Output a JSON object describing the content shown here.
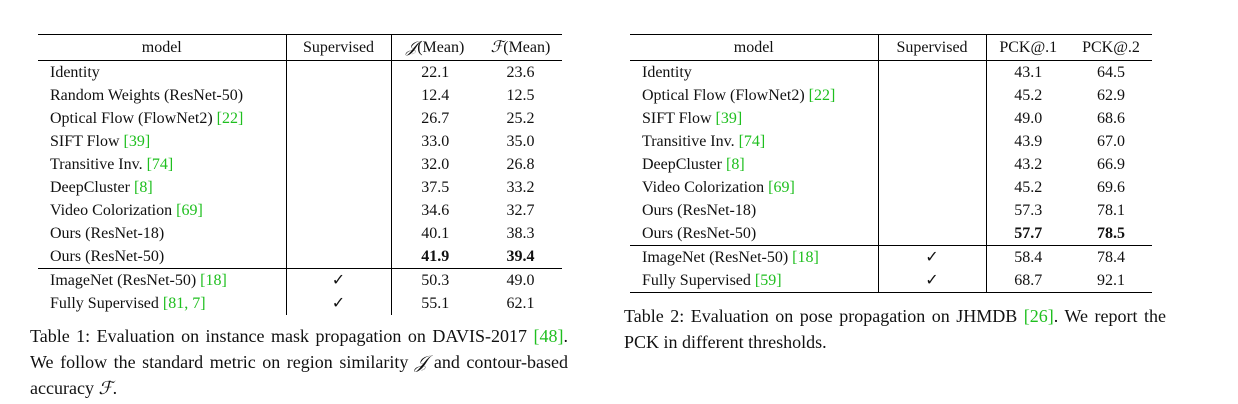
{
  "table1": {
    "headers": [
      "model",
      "Supervised",
      "J(Mean)",
      "F(Mean)"
    ],
    "header_symbols": [
      "𝒥",
      "ℱ"
    ],
    "header_suffix": "(Mean)",
    "rows": [
      {
        "model": "Identity",
        "ref": "",
        "supervised": "",
        "j": "22.1",
        "f": "23.6"
      },
      {
        "model": "Random Weights (ResNet-50)",
        "ref": "",
        "supervised": "",
        "j": "12.4",
        "f": "12.5"
      },
      {
        "model": "Optical Flow (FlowNet2) ",
        "ref": "[22]",
        "supervised": "",
        "j": "26.7",
        "f": "25.2"
      },
      {
        "model": "SIFT Flow ",
        "ref": "[39]",
        "supervised": "",
        "j": "33.0",
        "f": "35.0"
      },
      {
        "model": "Transitive Inv. ",
        "ref": "[74]",
        "supervised": "",
        "j": "32.0",
        "f": "26.8"
      },
      {
        "model": "DeepCluster ",
        "ref": "[8]",
        "supervised": "",
        "j": "37.5",
        "f": "33.2"
      },
      {
        "model": "Video Colorization ",
        "ref": "[69]",
        "supervised": "",
        "j": "34.6",
        "f": "32.7"
      },
      {
        "model": "Ours (ResNet-18)",
        "ref": "",
        "supervised": "",
        "j": "40.1",
        "f": "38.3"
      },
      {
        "model": "Ours (ResNet-50)",
        "ref": "",
        "supervised": "",
        "j": "41.9",
        "f": "39.4"
      },
      {
        "model": "ImageNet (ResNet-50) ",
        "ref": "[18]",
        "supervised": "✓",
        "j": "50.3",
        "f": "49.0"
      },
      {
        "model": "Fully Supervised ",
        "ref": "[81, 7]",
        "supervised": "✓",
        "j": "55.1",
        "f": "62.1"
      }
    ],
    "caption": {
      "label": "Table 1:",
      "text1": "Evaluation on instance mask propagation on DAVIS-2017 ",
      "ref": "[48]",
      "text2": ". We follow the standard metric on region similarity ",
      "sym1": "𝒥",
      "text3": " and contour-based accuracy ",
      "sym2": "ℱ",
      "text4": "."
    }
  },
  "table2": {
    "headers": [
      "model",
      "Supervised",
      "PCK@.1",
      "PCK@.2"
    ],
    "rows": [
      {
        "model": "Identity",
        "ref": "",
        "supervised": "",
        "p1": "43.1",
        "p2": "64.5"
      },
      {
        "model": "Optical Flow (FlowNet2) ",
        "ref": "[22]",
        "supervised": "",
        "p1": "45.2",
        "p2": "62.9"
      },
      {
        "model": "SIFT Flow ",
        "ref": "[39]",
        "supervised": "",
        "p1": "49.0",
        "p2": "68.6"
      },
      {
        "model": "Transitive Inv. ",
        "ref": "[74]",
        "supervised": "",
        "p1": "43.9",
        "p2": "67.0"
      },
      {
        "model": "DeepCluster ",
        "ref": "[8]",
        "supervised": "",
        "p1": "43.2",
        "p2": "66.9"
      },
      {
        "model": "Video Colorization ",
        "ref": "[69]",
        "supervised": "",
        "p1": "45.2",
        "p2": "69.6"
      },
      {
        "model": "Ours (ResNet-18)",
        "ref": "",
        "supervised": "",
        "p1": "57.3",
        "p2": "78.1"
      },
      {
        "model": "Ours (ResNet-50)",
        "ref": "",
        "supervised": "",
        "p1": "57.7",
        "p2": "78.5"
      },
      {
        "model": "ImageNet (ResNet-50) ",
        "ref": "[18]",
        "supervised": "✓",
        "p1": "58.4",
        "p2": "78.4"
      },
      {
        "model": "Fully Supervised ",
        "ref": "[59]",
        "supervised": "✓",
        "p1": "68.7",
        "p2": "92.1"
      }
    ],
    "caption": {
      "label": "Table 2:",
      "text1": "Evaluation on pose propagation on JHMDB ",
      "ref": "[26]",
      "text2": ". We report the PCK in different thresholds."
    }
  },
  "colors": {
    "citation": "#1fbf1f",
    "text": "#111111",
    "rule": "#000000"
  }
}
